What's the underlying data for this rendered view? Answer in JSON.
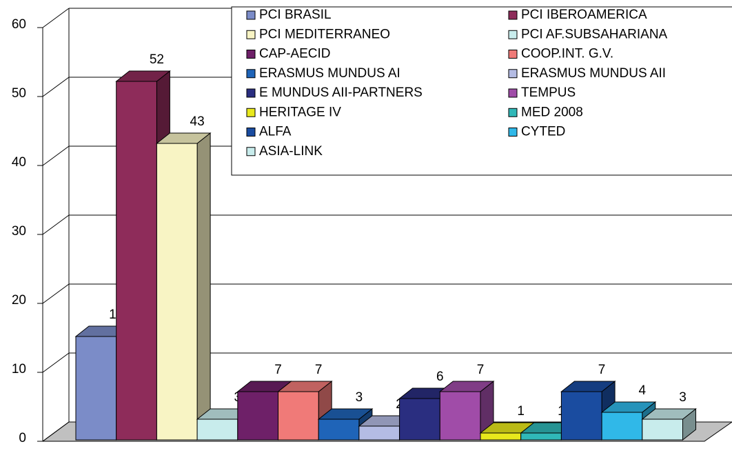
{
  "chart_data": {
    "type": "bar",
    "series": [
      {
        "name": "PCI BRASIL",
        "color": "#7b8cc8",
        "values": [
          15
        ]
      },
      {
        "name": "PCI IBEROAMERICA",
        "color": "#8e2c5a",
        "values": [
          52
        ]
      },
      {
        "name": "PCI MEDITERRANEO",
        "color": "#f8f4c4",
        "values": [
          43
        ]
      },
      {
        "name": "PCI AF.SUBSAHARIANA",
        "color": "#c8ecec",
        "values": [
          3
        ]
      },
      {
        "name": "CAP-AECID",
        "color": "#6e2068",
        "values": [
          7
        ]
      },
      {
        "name": "COOP.INT. G.V.",
        "color": "#f07a78",
        "values": [
          7
        ]
      },
      {
        "name": "ERASMUS MUNDUS AI",
        "color": "#1f64b8",
        "values": [
          3
        ]
      },
      {
        "name": "ERASMUS MUNDUS AII",
        "color": "#b4bce4",
        "values": [
          2
        ]
      },
      {
        "name": "E MUNDUS AII-PARTNERS",
        "color": "#2a2e80",
        "values": [
          6
        ]
      },
      {
        "name": "TEMPUS",
        "color": "#a04ca8",
        "values": [
          7
        ]
      },
      {
        "name": "HERITAGE IV",
        "color": "#e8e81c",
        "values": [
          1
        ]
      },
      {
        "name": "MED 2008",
        "color": "#30b8b8",
        "values": [
          1
        ]
      },
      {
        "name": "ALFA",
        "color": "#1a4ca0",
        "values": [
          7
        ]
      },
      {
        "name": "CYTED",
        "color": "#30b8e8",
        "values": [
          4
        ]
      },
      {
        "name": "ASIA-LINK",
        "color": "#c8ecec",
        "values": [
          3
        ]
      }
    ],
    "ylim": [
      0,
      60
    ],
    "yticks": [
      0,
      10,
      20,
      30,
      40,
      50,
      60
    ],
    "grid": true
  }
}
